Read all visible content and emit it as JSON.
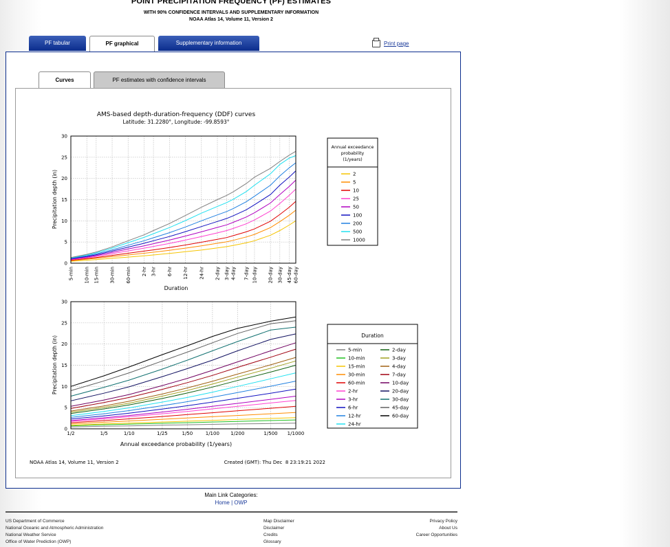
{
  "header": {
    "title": "POINT PRECIPITATION FREQUENCY (PF) ESTIMATES",
    "subtitle": "WITH 90% CONFIDENCE INTERVALS AND SUPPLEMENTARY INFORMATION",
    "atlas": "NOAA Atlas 14, Volume 11, Version 2"
  },
  "tabs": [
    "PF tabular",
    "PF graphical",
    "Supplementary information"
  ],
  "print_label": "Print page",
  "subtabs": [
    "Curves",
    "PF estimates with confidence intervals"
  ],
  "chart_data": [
    {
      "type": "line",
      "title": "AMS-based depth-duration-frequency (DDF) curves",
      "subtitle": "Latitude: 31.2280°, Longitude: -99.8593°",
      "xlabel": "Duration",
      "ylabel": "Precipitation depth (in)",
      "ylim": [
        0,
        30
      ],
      "yticks": [
        0,
        5,
        10,
        15,
        20,
        25,
        30
      ],
      "x": [
        "5-min",
        "10-min",
        "15-min",
        "30-min",
        "60-min",
        "2-hr",
        "3-hr",
        "6-hr",
        "12-hr",
        "24-hr",
        "2-day",
        "3-day",
        "4-day",
        "7-day",
        "10-day",
        "20-day",
        "30-day",
        "45-day",
        "60-day"
      ],
      "grid": true,
      "legend_title": "Annual exceedance probability (1/years)",
      "legend_position": "right",
      "series": [
        {
          "name": "2",
          "color": "#f5c400",
          "values": [
            0.45,
            0.7,
            0.85,
            1.15,
            1.45,
            1.75,
            1.95,
            2.3,
            2.7,
            3.1,
            3.6,
            3.9,
            4.2,
            4.8,
            5.3,
            6.6,
            7.7,
            9.0,
            10.0
          ]
        },
        {
          "name": "5",
          "color": "#ff8c00",
          "values": [
            0.6,
            0.95,
            1.15,
            1.55,
            1.95,
            2.35,
            2.6,
            3.05,
            3.55,
            4.1,
            4.7,
            5.05,
            5.4,
            6.2,
            6.8,
            8.4,
            9.8,
            11.3,
            12.5
          ]
        },
        {
          "name": "10",
          "color": "#e00000",
          "values": [
            0.7,
            1.1,
            1.35,
            1.85,
            2.35,
            2.85,
            3.15,
            3.7,
            4.3,
            4.95,
            5.65,
            6.05,
            6.5,
            7.4,
            8.1,
            9.9,
            11.5,
            13.2,
            14.6
          ]
        },
        {
          "name": "25",
          "color": "#ff40d0",
          "values": [
            0.85,
            1.3,
            1.6,
            2.25,
            2.9,
            3.55,
            3.95,
            4.65,
            5.45,
            6.3,
            7.15,
            7.7,
            8.2,
            9.3,
            10.2,
            12.3,
            14.1,
            16.0,
            17.5
          ]
        },
        {
          "name": "50",
          "color": "#b000c0",
          "values": [
            0.95,
            1.45,
            1.8,
            2.55,
            3.35,
            4.1,
            4.6,
            5.45,
            6.4,
            7.4,
            8.45,
            9.05,
            9.65,
            10.9,
            11.9,
            14.2,
            16.2,
            18.1,
            19.6
          ]
        },
        {
          "name": "100",
          "color": "#1010c0",
          "values": [
            1.05,
            1.6,
            2.0,
            2.85,
            3.8,
            4.7,
            5.3,
            6.3,
            7.45,
            8.65,
            9.85,
            10.55,
            11.2,
            12.6,
            13.8,
            16.2,
            18.4,
            20.3,
            21.8
          ]
        },
        {
          "name": "200",
          "color": "#2080e0",
          "values": [
            1.15,
            1.75,
            2.2,
            3.15,
            4.25,
            5.3,
            6.0,
            7.2,
            8.55,
            10.0,
            11.4,
            12.2,
            12.9,
            14.5,
            15.8,
            18.4,
            20.6,
            22.5,
            23.7
          ]
        },
        {
          "name": "500",
          "color": "#20e0f0",
          "values": [
            1.25,
            1.95,
            2.45,
            3.55,
            4.85,
            6.1,
            6.95,
            8.4,
            10.05,
            11.8,
            13.4,
            14.3,
            15.1,
            16.9,
            18.4,
            21.1,
            23.3,
            24.8,
            25.4
          ]
        },
        {
          "name": "1000",
          "color": "#808080",
          "values": [
            1.35,
            2.1,
            2.65,
            3.85,
            5.3,
            6.7,
            7.7,
            9.35,
            11.25,
            13.2,
            15.0,
            16.0,
            16.85,
            18.8,
            20.3,
            22.4,
            24.0,
            25.5,
            26.4
          ]
        }
      ]
    },
    {
      "type": "line",
      "xlabel": "Annual exceedance probability (1/years)",
      "ylabel": "Precipitation depth (in)",
      "ylim": [
        0,
        30
      ],
      "yticks": [
        0,
        5,
        10,
        15,
        20,
        25,
        30
      ],
      "x": [
        "1/2",
        "1/5",
        "1/10",
        "1/25",
        "1/50",
        "1/100",
        "1/200",
        "1/500",
        "1/1000"
      ],
      "x_log_return_period": [
        2,
        5,
        10,
        25,
        50,
        100,
        200,
        500,
        1000
      ],
      "grid": true,
      "legend_title": "Duration",
      "legend_position": "right",
      "series": [
        {
          "name": "5-min",
          "color": "#808080",
          "values": [
            0.45,
            0.6,
            0.7,
            0.85,
            0.95,
            1.05,
            1.15,
            1.25,
            1.35
          ]
        },
        {
          "name": "10-min",
          "color": "#20c020",
          "values": [
            0.7,
            0.95,
            1.1,
            1.3,
            1.45,
            1.6,
            1.75,
            1.95,
            2.1
          ]
        },
        {
          "name": "15-min",
          "color": "#f5c400",
          "values": [
            0.85,
            1.15,
            1.35,
            1.6,
            1.8,
            2.0,
            2.2,
            2.45,
            2.65
          ]
        },
        {
          "name": "30-min",
          "color": "#ff8c00",
          "values": [
            1.15,
            1.55,
            1.85,
            2.25,
            2.55,
            2.85,
            3.15,
            3.55,
            3.85
          ]
        },
        {
          "name": "60-min",
          "color": "#e00000",
          "values": [
            1.45,
            1.95,
            2.35,
            2.9,
            3.35,
            3.8,
            4.25,
            4.85,
            5.3
          ]
        },
        {
          "name": "2-hr",
          "color": "#ff40d0",
          "values": [
            1.75,
            2.35,
            2.85,
            3.55,
            4.1,
            4.7,
            5.3,
            6.1,
            6.7
          ]
        },
        {
          "name": "3-hr",
          "color": "#b000c0",
          "values": [
            1.95,
            2.6,
            3.15,
            3.95,
            4.6,
            5.3,
            6.0,
            6.95,
            7.7
          ]
        },
        {
          "name": "6-hr",
          "color": "#1010c0",
          "values": [
            2.3,
            3.05,
            3.7,
            4.65,
            5.45,
            6.3,
            7.2,
            8.4,
            9.35
          ]
        },
        {
          "name": "12-hr",
          "color": "#2080e0",
          "values": [
            2.7,
            3.55,
            4.3,
            5.45,
            6.4,
            7.45,
            8.55,
            10.05,
            11.25
          ]
        },
        {
          "name": "24-hr",
          "color": "#20e0f0",
          "values": [
            3.1,
            4.1,
            4.95,
            6.3,
            7.4,
            8.65,
            10.0,
            11.8,
            13.2
          ]
        },
        {
          "name": "2-day",
          "color": "#106010",
          "values": [
            3.6,
            4.7,
            5.65,
            7.15,
            8.45,
            9.85,
            11.4,
            13.4,
            15.0
          ]
        },
        {
          "name": "3-day",
          "color": "#a0a020",
          "values": [
            3.9,
            5.05,
            6.05,
            7.7,
            9.05,
            10.55,
            12.2,
            14.3,
            16.0
          ]
        },
        {
          "name": "4-day",
          "color": "#a06010",
          "values": [
            4.2,
            5.4,
            6.5,
            8.2,
            9.65,
            11.2,
            12.9,
            15.1,
            16.85
          ]
        },
        {
          "name": "7-day",
          "color": "#a00010",
          "values": [
            4.8,
            6.2,
            7.4,
            9.3,
            10.9,
            12.6,
            14.5,
            16.9,
            18.8
          ]
        },
        {
          "name": "10-day",
          "color": "#700060",
          "values": [
            5.3,
            6.8,
            8.1,
            10.2,
            11.9,
            13.8,
            15.8,
            18.4,
            20.3
          ]
        },
        {
          "name": "20-day",
          "color": "#101060",
          "values": [
            6.6,
            8.4,
            9.9,
            12.3,
            14.2,
            16.2,
            18.4,
            21.1,
            22.4
          ]
        },
        {
          "name": "30-day",
          "color": "#107070",
          "values": [
            7.7,
            9.8,
            11.5,
            14.1,
            16.2,
            18.4,
            20.6,
            23.3,
            24.0
          ]
        },
        {
          "name": "45-day",
          "color": "#606060",
          "values": [
            9.0,
            11.3,
            13.2,
            16.0,
            18.1,
            20.3,
            22.5,
            24.8,
            25.5
          ]
        },
        {
          "name": "60-day",
          "color": "#000000",
          "values": [
            10.0,
            12.5,
            14.6,
            17.5,
            19.6,
            21.8,
            23.7,
            25.4,
            26.4
          ]
        }
      ]
    }
  ],
  "chart_footer": {
    "left": "NOAA Atlas 14, Volume 11, Version 2",
    "right": "Created (GMT): Thu Dec  8 23:19:21 2022"
  },
  "footer": {
    "categories_label": "Main Link Categories:",
    "home": "Home",
    "sep": "|",
    "owp": "OWP",
    "left": [
      "US Department of Commerce",
      "National Oceanic and Atmospheric Administration",
      "National Weather Service",
      "Office of Water Prediction (OWP)"
    ],
    "middle": [
      "Map Disclaimer",
      "Disclaimer",
      "Credits",
      "Glossary"
    ],
    "right": [
      "Privacy Policy",
      "About Us",
      "Career Opportunities"
    ]
  }
}
